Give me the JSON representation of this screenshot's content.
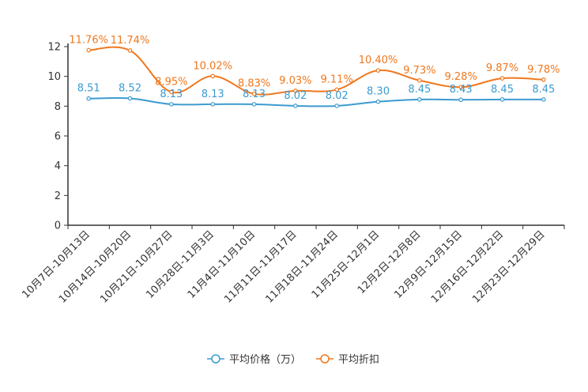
{
  "chart_data": {
    "type": "line",
    "categories": [
      "10月7日-10月13日",
      "10月14日-10月20日",
      "10月21日-10月27日",
      "10月28日-11月3日",
      "11月4日-11月10日",
      "11月11日-11月17日",
      "11月18日-11月24日",
      "11月25日-12月1日",
      "12月2日-12月8日",
      "12月9日-12月15日",
      "12月16日-12月22日",
      "12月23日-12月29日"
    ],
    "y_ticks": [
      "0",
      "2",
      "4",
      "6",
      "8",
      "10",
      "12"
    ],
    "ylim": [
      0,
      12
    ],
    "series": [
      {
        "name": "平均价格（万）",
        "color": "#3c9bd0",
        "values": [
          8.51,
          8.52,
          8.13,
          8.13,
          8.13,
          8.02,
          8.02,
          8.3,
          8.45,
          8.43,
          8.45,
          8.45
        ],
        "labels": [
          "8.51",
          "8.52",
          "8.13",
          "8.13",
          "8.13",
          "8.02",
          "8.02",
          "8.30",
          "8.45",
          "8.43",
          "8.45",
          "8.45"
        ]
      },
      {
        "name": "平均折扣",
        "color": "#f0781e",
        "values": [
          11.76,
          11.74,
          8.95,
          10.02,
          8.83,
          9.03,
          9.11,
          10.4,
          9.73,
          9.28,
          9.87,
          9.78
        ],
        "labels": [
          "11.76%",
          "11.74%",
          "8.95%",
          "10.02%",
          "8.83%",
          "9.03%",
          "9.11%",
          "10.40%",
          "9.73%",
          "9.28%",
          "9.87%",
          "9.78%"
        ]
      }
    ],
    "legend_position": "bottom-center"
  }
}
